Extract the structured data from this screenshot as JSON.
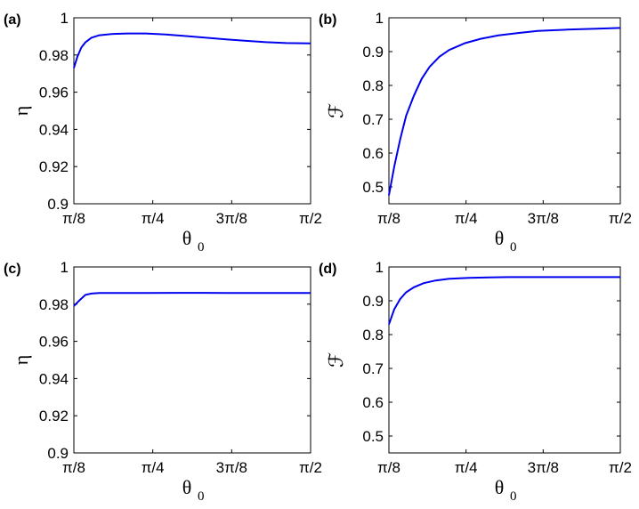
{
  "chart_data": [
    {
      "type": "line",
      "panel_label": "(a)",
      "xlabel": "θ",
      "xlabel_sub": "0",
      "ylabel": "η",
      "xlim": [
        0.3927,
        1.5708
      ],
      "ylim": [
        0.9,
        1.0
      ],
      "xticks": [
        0.3927,
        0.7854,
        1.1781,
        1.5708
      ],
      "xtick_labels": [
        "π/8",
        "π/4",
        "3π/8",
        "π/2"
      ],
      "yticks": [
        0.9,
        0.92,
        0.94,
        0.96,
        0.98,
        1.0
      ],
      "ytick_labels": [
        "0.9",
        "0.92",
        "0.94",
        "0.96",
        "0.98",
        "1"
      ],
      "grid": false,
      "series": [
        {
          "color": "#0000ee",
          "x": [
            0.3927,
            0.41,
            0.43,
            0.45,
            0.48,
            0.52,
            0.58,
            0.66,
            0.75,
            0.85,
            0.95,
            1.05,
            1.15,
            1.25,
            1.35,
            1.45,
            1.5708
          ],
          "y": [
            0.973,
            0.979,
            0.984,
            0.9868,
            0.9893,
            0.9906,
            0.9913,
            0.9916,
            0.9916,
            0.991,
            0.9902,
            0.9893,
            0.9884,
            0.9876,
            0.9869,
            0.9864,
            0.9862
          ]
        }
      ]
    },
    {
      "type": "line",
      "panel_label": "(b)",
      "xlabel": "θ",
      "xlabel_sub": "0",
      "ylabel": "ℱ",
      "xlim": [
        0.3927,
        1.5708
      ],
      "ylim": [
        0.45,
        1.0
      ],
      "xticks": [
        0.3927,
        0.7854,
        1.1781,
        1.5708
      ],
      "xtick_labels": [
        "π/8",
        "π/4",
        "3π/8",
        "π/2"
      ],
      "yticks": [
        0.5,
        0.6,
        0.7,
        0.8,
        0.9,
        1.0
      ],
      "ytick_labels": [
        "0.5",
        "0.6",
        "0.7",
        "0.8",
        "0.9",
        "1"
      ],
      "grid": false,
      "series": [
        {
          "color": "#0000ee",
          "x": [
            0.3927,
            0.42,
            0.45,
            0.48,
            0.52,
            0.56,
            0.6,
            0.65,
            0.7,
            0.78,
            0.86,
            0.95,
            1.05,
            1.15,
            1.3,
            1.45,
            1.5708
          ],
          "y": [
            0.475,
            0.56,
            0.64,
            0.71,
            0.77,
            0.82,
            0.855,
            0.885,
            0.905,
            0.925,
            0.938,
            0.948,
            0.955,
            0.961,
            0.965,
            0.968,
            0.97
          ]
        }
      ]
    },
    {
      "type": "line",
      "panel_label": "(c)",
      "xlabel": "θ",
      "xlabel_sub": "0",
      "ylabel": "η",
      "xlim": [
        0.3927,
        1.5708
      ],
      "ylim": [
        0.9,
        1.0
      ],
      "xticks": [
        0.3927,
        0.7854,
        1.1781,
        1.5708
      ],
      "xtick_labels": [
        "π/8",
        "π/4",
        "3π/8",
        "π/2"
      ],
      "yticks": [
        0.9,
        0.92,
        0.94,
        0.96,
        0.98,
        1.0
      ],
      "ytick_labels": [
        "0.9",
        "0.92",
        "0.94",
        "0.96",
        "0.98",
        "1"
      ],
      "grid": false,
      "series": [
        {
          "color": "#0000ee",
          "x": [
            0.3927,
            0.42,
            0.45,
            0.48,
            0.52,
            0.6,
            0.75,
            0.9,
            1.05,
            1.2,
            1.35,
            1.5708
          ],
          "y": [
            0.979,
            0.982,
            0.985,
            0.9857,
            0.986,
            0.986,
            0.986,
            0.9861,
            0.9861,
            0.986,
            0.986,
            0.986
          ]
        }
      ]
    },
    {
      "type": "line",
      "panel_label": "(d)",
      "xlabel": "θ",
      "xlabel_sub": "0",
      "ylabel": "ℱ",
      "xlim": [
        0.3927,
        1.5708
      ],
      "ylim": [
        0.45,
        1.0
      ],
      "xticks": [
        0.3927,
        0.7854,
        1.1781,
        1.5708
      ],
      "xtick_labels": [
        "π/8",
        "π/4",
        "3π/8",
        "π/2"
      ],
      "yticks": [
        0.5,
        0.6,
        0.7,
        0.8,
        0.9,
        1.0
      ],
      "ytick_labels": [
        "0.5",
        "0.6",
        "0.7",
        "0.8",
        "0.9",
        "1"
      ],
      "grid": false,
      "series": [
        {
          "color": "#0000ee",
          "x": [
            0.3927,
            0.42,
            0.45,
            0.48,
            0.52,
            0.57,
            0.63,
            0.7,
            0.8,
            0.9,
            1.0,
            1.2,
            1.4,
            1.5708
          ],
          "y": [
            0.83,
            0.875,
            0.905,
            0.925,
            0.94,
            0.952,
            0.96,
            0.965,
            0.968,
            0.969,
            0.97,
            0.97,
            0.97,
            0.97
          ]
        }
      ]
    }
  ]
}
